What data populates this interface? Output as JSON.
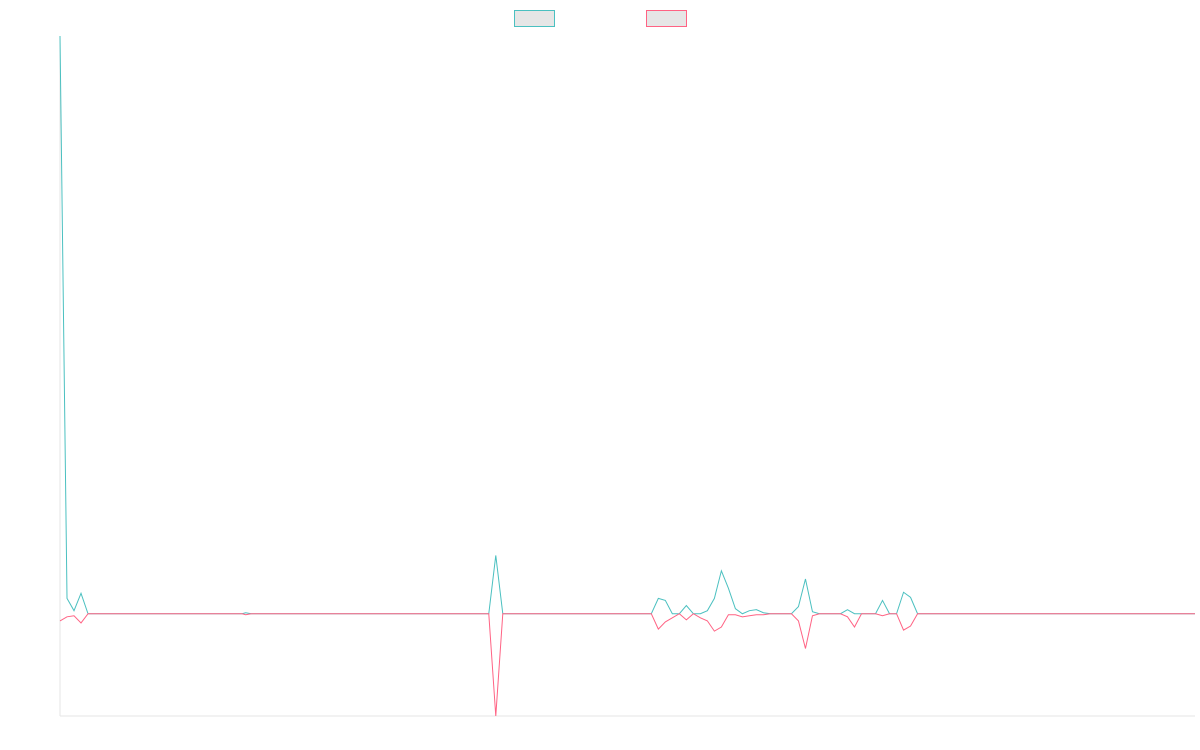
{
  "chart_data": {
    "type": "line",
    "title": "",
    "xlabel": "",
    "ylabel": "",
    "x_count": 163,
    "ylim": [
      -1.0,
      5.65
    ],
    "grid": false,
    "legend": {
      "position": "top-center"
    },
    "series": [
      {
        "color": "#4bc0c0",
        "fill": "#e6e6e6",
        "points": [
          [
            0,
            5.65
          ],
          [
            1,
            0.15
          ],
          [
            2,
            0.03
          ],
          [
            3,
            0.2
          ],
          [
            4,
            0.0
          ],
          [
            26,
            0.0
          ],
          [
            26.5,
            0.01
          ],
          [
            27.3,
            0.0
          ],
          [
            61.2,
            0.0
          ],
          [
            62.2,
            0.57
          ],
          [
            63.2,
            0.0
          ],
          [
            84.4,
            0.0
          ],
          [
            85.4,
            0.15
          ],
          [
            86.4,
            0.13
          ],
          [
            87.4,
            0.0
          ],
          [
            88.4,
            0.0
          ],
          [
            89.4,
            0.08
          ],
          [
            90.4,
            0.0
          ],
          [
            91.4,
            0.0
          ],
          [
            92.4,
            0.03
          ],
          [
            93.4,
            0.15
          ],
          [
            94.4,
            0.42
          ],
          [
            95.4,
            0.25
          ],
          [
            96.4,
            0.05
          ],
          [
            97.4,
            0.0
          ],
          [
            98.4,
            0.03
          ],
          [
            99.4,
            0.04
          ],
          [
            100.4,
            0.01
          ],
          [
            101.4,
            0.0
          ],
          [
            104.4,
            0.0
          ],
          [
            105.4,
            0.07
          ],
          [
            106.4,
            0.34
          ],
          [
            107.4,
            0.02
          ],
          [
            108.4,
            0.0
          ],
          [
            111.4,
            0.0
          ],
          [
            112.4,
            0.04
          ],
          [
            113.4,
            0.0
          ],
          [
            116.4,
            0.0
          ],
          [
            117.4,
            0.13
          ],
          [
            118.4,
            0.0
          ],
          [
            119.4,
            0.0
          ],
          [
            120.4,
            0.21
          ],
          [
            121.4,
            0.16
          ],
          [
            122.4,
            0.0
          ],
          [
            162,
            0.0
          ]
        ]
      },
      {
        "color": "#ff6384",
        "fill": "#e6e6e6",
        "points": [
          [
            0,
            -0.07
          ],
          [
            1,
            -0.03
          ],
          [
            2,
            -0.02
          ],
          [
            3,
            -0.09
          ],
          [
            4,
            0.0
          ],
          [
            26,
            0.0
          ],
          [
            26.5,
            -0.01
          ],
          [
            27.3,
            0.0
          ],
          [
            61.2,
            0.0
          ],
          [
            62.2,
            -1.0
          ],
          [
            63.2,
            0.0
          ],
          [
            84.4,
            0.0
          ],
          [
            85.4,
            -0.15
          ],
          [
            86.4,
            -0.08
          ],
          [
            87.4,
            -0.04
          ],
          [
            88.4,
            0.0
          ],
          [
            89.4,
            -0.06
          ],
          [
            90.4,
            0.0
          ],
          [
            91.4,
            -0.04
          ],
          [
            92.4,
            -0.07
          ],
          [
            93.4,
            -0.17
          ],
          [
            94.4,
            -0.13
          ],
          [
            95.4,
            -0.01
          ],
          [
            96.4,
            -0.01
          ],
          [
            97.4,
            -0.03
          ],
          [
            98.4,
            -0.02
          ],
          [
            99.4,
            -0.01
          ],
          [
            100.4,
            -0.01
          ],
          [
            101.4,
            0.0
          ],
          [
            104.4,
            0.0
          ],
          [
            105.4,
            -0.07
          ],
          [
            106.4,
            -0.34
          ],
          [
            107.4,
            -0.02
          ],
          [
            108.4,
            0.0
          ],
          [
            111.4,
            0.0
          ],
          [
            112.4,
            -0.03
          ],
          [
            113.4,
            -0.13
          ],
          [
            114.4,
            0.0
          ],
          [
            116.4,
            0.0
          ],
          [
            117.4,
            -0.02
          ],
          [
            118.4,
            0.0
          ],
          [
            119.4,
            0.0
          ],
          [
            120.4,
            -0.16
          ],
          [
            121.4,
            -0.12
          ],
          [
            122.4,
            0.0
          ],
          [
            162,
            0.0
          ]
        ]
      }
    ]
  }
}
